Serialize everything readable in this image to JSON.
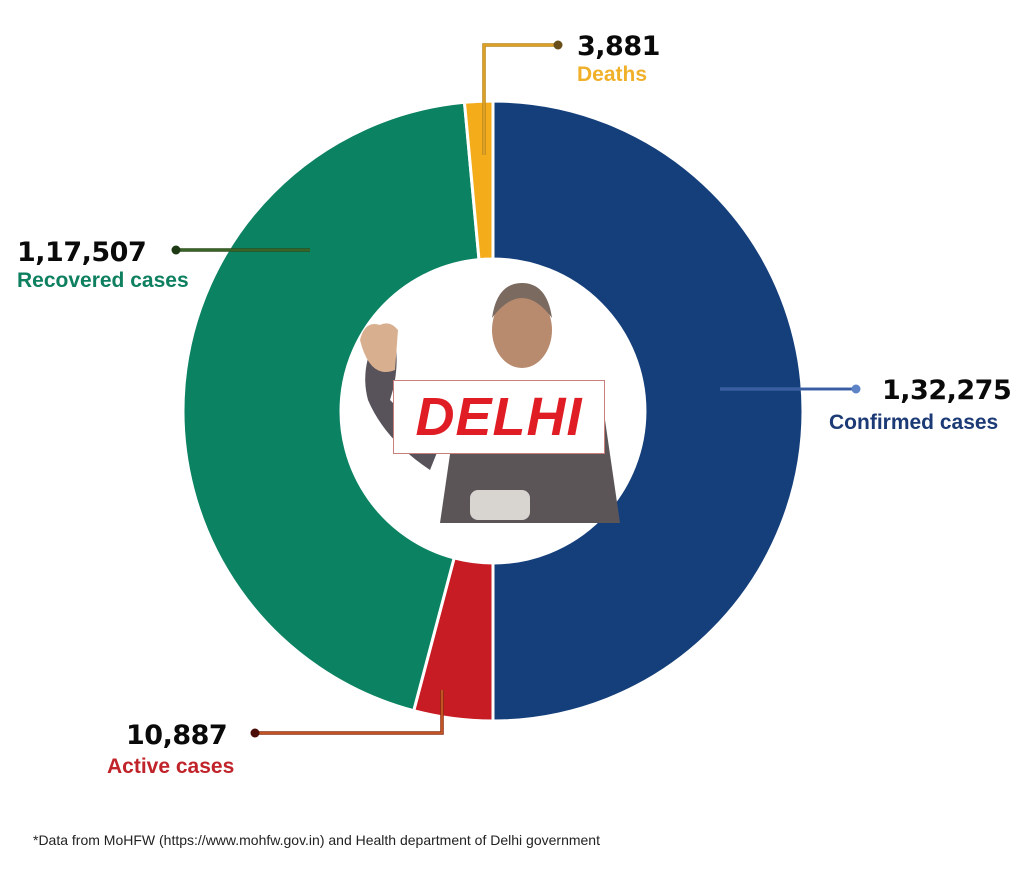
{
  "chart_data": {
    "type": "pie",
    "variant": "donut",
    "title": "",
    "center_label": "DELHI",
    "categories": [
      "Confirmed cases",
      "Active cases",
      "Recovered cases",
      "Deaths"
    ],
    "values": [
      132275,
      10887,
      117507,
      3881
    ],
    "display_values": [
      "1,32,275",
      "10,887",
      "1,17,507",
      "3,881"
    ],
    "colors": [
      "#153f7a",
      "#c81c24",
      "#0b8262",
      "#f4ac1a"
    ],
    "note": "Confirmed cases occupy the right half; active + recovered + deaths compose the left half"
  },
  "labels": {
    "deaths": {
      "value": "3,881",
      "caption": "Deaths",
      "color": "#f0b02a",
      "leader": "#b9861d"
    },
    "recovered": {
      "value": "1,17,507",
      "caption": "Recovered cases",
      "color": "#0e8060",
      "leader": "#2d4f1e"
    },
    "confirmed": {
      "value": "1,32,275",
      "caption": "Confirmed cases",
      "color": "#1c3a75",
      "leader": "#4a6cb0"
    },
    "active": {
      "value": "10,887",
      "caption": "Active cases",
      "color": "#c0242a",
      "leader": "#b24a1e"
    }
  },
  "center": {
    "text": "DELHI"
  },
  "footnote": "*Data from MoHFW (https://www.mohfw.gov.in) and Health department of Delhi government"
}
